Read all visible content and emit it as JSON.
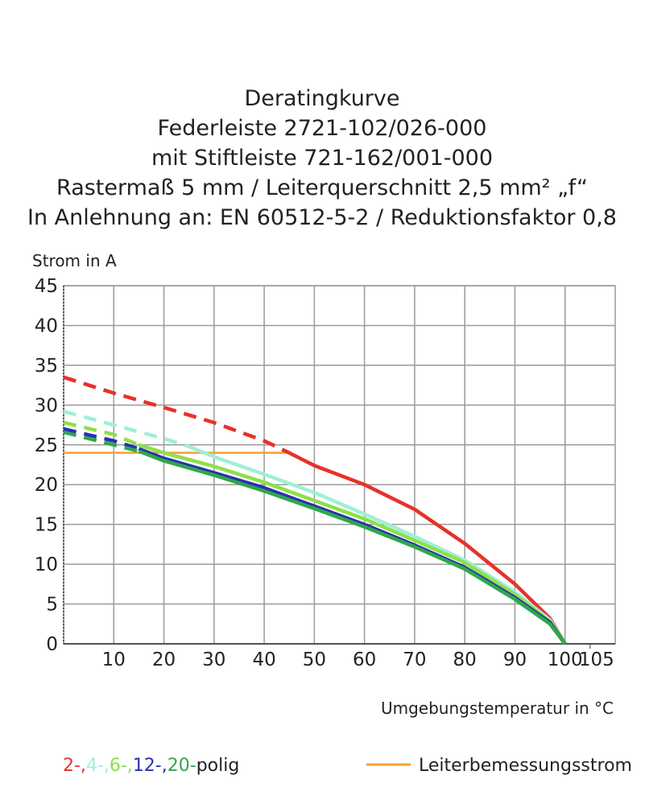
{
  "chart_data": {
    "type": "line",
    "title": [
      "Deratingkurve",
      "Federleiste 2721-102/026-000",
      "mit Stiftleiste 721-162/001-000",
      "Rastermaß 5 mm / Leiterquerschnitt 2,5 mm² „f“",
      "In Anlehnung an: EN 60512-5-2 / Reduktionsfaktor 0,8"
    ],
    "y_label": "Strom in A",
    "x_label": "Umgebungstemperatur in °C",
    "xlim": [
      0,
      110
    ],
    "xticks": [
      10,
      20,
      30,
      40,
      50,
      60,
      70,
      80,
      90,
      100,
      105
    ],
    "ylim": [
      0,
      45
    ],
    "yticks": [
      0,
      5,
      10,
      15,
      20,
      25,
      30,
      35,
      40,
      45
    ],
    "grid": true,
    "series": [
      {
        "name": "2-,",
        "color": "#e8312a",
        "dashed_until": 45,
        "x": [
          0,
          10,
          20,
          30,
          40,
          45,
          50,
          60,
          70,
          80,
          90,
          97,
          100
        ],
        "values": [
          33.5,
          31.5,
          29.7,
          27.8,
          25.5,
          24,
          22.4,
          20,
          16.9,
          12.6,
          7.5,
          3.2,
          0
        ]
      },
      {
        "name": "4-,",
        "color": "#9fefd6",
        "dashed_until": 25,
        "x": [
          0,
          10,
          20,
          25,
          30,
          40,
          50,
          60,
          70,
          80,
          90,
          97,
          100
        ],
        "values": [
          29.2,
          27.5,
          25.8,
          24.8,
          23.5,
          21.3,
          19,
          16.3,
          13.5,
          10.5,
          6.5,
          3,
          0
        ]
      },
      {
        "name": "6-,",
        "color": "#8ee04a",
        "dashed_until": 15,
        "x": [
          0,
          10,
          15,
          20,
          30,
          40,
          50,
          60,
          70,
          80,
          90,
          97,
          100
        ],
        "values": [
          27.8,
          26.3,
          25,
          24,
          22.3,
          20.3,
          18,
          15.7,
          13,
          10.2,
          6.2,
          2.8,
          0
        ]
      },
      {
        "name": "12-,",
        "color": "#2a2fb0",
        "dashed_until": 15,
        "x": [
          0,
          10,
          15,
          20,
          30,
          40,
          50,
          60,
          70,
          80,
          90,
          97,
          100
        ],
        "values": [
          27,
          25.5,
          24.5,
          23.3,
          21.5,
          19.6,
          17.3,
          15,
          12.4,
          9.6,
          5.8,
          2.7,
          0
        ]
      },
      {
        "name": "20-",
        "color": "#2ea84a",
        "dashed_until": 15,
        "x": [
          0,
          10,
          15,
          20,
          30,
          40,
          50,
          60,
          70,
          80,
          90,
          97,
          100
        ],
        "values": [
          26.6,
          25,
          24.2,
          23,
          21.2,
          19.2,
          17,
          14.7,
          12.2,
          9.4,
          5.6,
          2.5,
          0
        ]
      }
    ],
    "legend_suffix": "polig",
    "reference": {
      "name": "Leiterbemessungsstrom",
      "color": "#f5a030",
      "x": [
        0,
        45
      ],
      "values": [
        24,
        24
      ]
    }
  }
}
